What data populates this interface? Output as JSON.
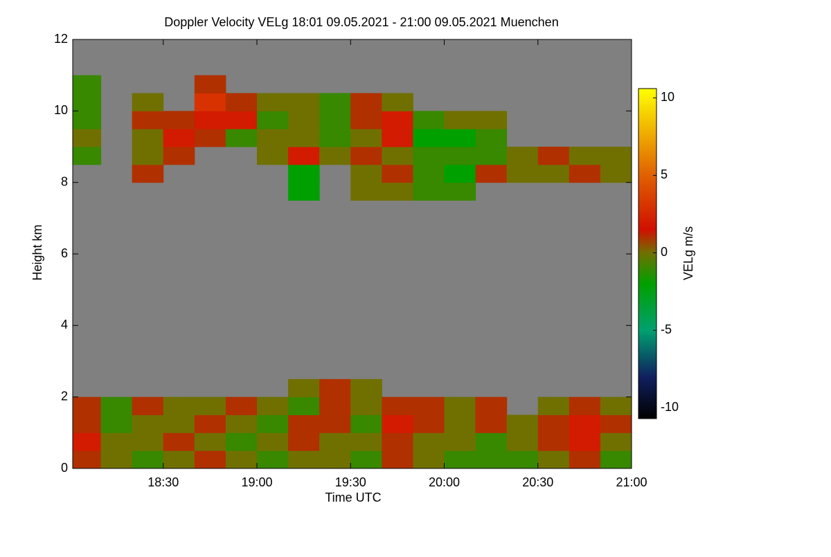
{
  "chart_data": {
    "type": "heatmap",
    "title": "Doppler Velocity VELg   18:01 09.05.2021 - 21:00 09.05.2021 Muenchen",
    "x_label": "Time UTC",
    "y_label": "Height km",
    "colorbar_label": "VELg m/s",
    "xlim": [
      1081,
      1260
    ],
    "ylim": [
      0,
      12
    ],
    "xticks": [
      {
        "value": 1110,
        "label": "18:30"
      },
      {
        "value": 1140,
        "label": "19:00"
      },
      {
        "value": 1170,
        "label": "19:30"
      },
      {
        "value": 1200,
        "label": "20:00"
      },
      {
        "value": 1230,
        "label": "20:30"
      },
      {
        "value": 1260,
        "label": "21:00"
      }
    ],
    "yticks": [
      0,
      2,
      4,
      6,
      8,
      10,
      12
    ],
    "zlim": [
      -10.7,
      10.6
    ],
    "zticks": [
      -10,
      -5,
      0,
      5,
      10
    ],
    "background": "#808080",
    "colorscale": [
      [
        -10.7,
        "#000000"
      ],
      [
        -8,
        "#102060"
      ],
      [
        -5,
        "#00a070"
      ],
      [
        -2,
        "#00a000"
      ],
      [
        0,
        "#707000"
      ],
      [
        1.5,
        "#d01000"
      ],
      [
        5,
        "#e06000"
      ],
      [
        10.6,
        "#ffff00"
      ]
    ],
    "x_bins": [
      1080,
      1090,
      1100,
      1110,
      1120,
      1130,
      1140,
      1150,
      1160,
      1170,
      1180,
      1190,
      1200,
      1210,
      1220,
      1230,
      1240,
      1250,
      1260
    ],
    "y_bins": [
      0,
      0.5,
      1,
      1.5,
      2,
      2.5,
      3,
      3.5,
      4,
      4.5,
      5,
      5.5,
      6,
      6.5,
      7,
      7.5,
      8,
      8.5,
      9,
      9.5,
      10,
      10.5,
      11,
      11.5,
      12
    ],
    "values": [
      [
        1,
        0,
        -1,
        0,
        1,
        0,
        -1,
        0,
        0,
        -1,
        1,
        0,
        -1,
        -1,
        -1,
        0,
        1,
        -1
      ],
      [
        2,
        0,
        0,
        1,
        0,
        -1,
        0,
        1,
        0,
        0,
        1,
        0,
        0,
        -1,
        0,
        1,
        2,
        0
      ],
      [
        1,
        -1,
        0,
        0,
        1,
        0,
        -1,
        1,
        1,
        -1,
        2,
        1,
        0,
        1,
        0,
        1,
        2,
        1
      ],
      [
        1,
        -1,
        1,
        0,
        0,
        1,
        0,
        -1,
        1,
        0,
        1,
        1,
        0,
        1,
        null,
        0,
        1,
        0
      ],
      [
        null,
        null,
        null,
        null,
        null,
        null,
        null,
        0,
        1,
        0,
        null,
        null,
        null,
        null,
        null,
        null,
        null,
        null
      ],
      [
        null,
        null,
        null,
        null,
        null,
        null,
        null,
        null,
        null,
        null,
        null,
        null,
        null,
        null,
        null,
        null,
        null,
        null
      ],
      [
        null,
        null,
        null,
        null,
        null,
        null,
        null,
        null,
        null,
        null,
        null,
        null,
        null,
        null,
        null,
        null,
        null,
        null
      ],
      [
        null,
        null,
        null,
        null,
        null,
        null,
        null,
        null,
        null,
        null,
        null,
        null,
        null,
        null,
        null,
        null,
        null,
        null
      ],
      [
        null,
        null,
        null,
        null,
        null,
        null,
        null,
        null,
        null,
        null,
        null,
        null,
        null,
        null,
        null,
        null,
        null,
        null
      ],
      [
        null,
        null,
        null,
        null,
        null,
        null,
        null,
        null,
        null,
        null,
        null,
        null,
        null,
        null,
        null,
        null,
        null,
        null
      ],
      [
        null,
        null,
        null,
        null,
        null,
        null,
        null,
        null,
        null,
        null,
        null,
        null,
        null,
        null,
        null,
        null,
        null,
        null
      ],
      [
        null,
        null,
        null,
        null,
        null,
        null,
        null,
        null,
        null,
        null,
        null,
        null,
        null,
        null,
        null,
        null,
        null,
        null
      ],
      [
        null,
        null,
        null,
        null,
        null,
        null,
        null,
        null,
        null,
        null,
        null,
        null,
        null,
        null,
        null,
        null,
        null,
        null
      ],
      [
        null,
        null,
        null,
        null,
        null,
        null,
        null,
        null,
        null,
        null,
        null,
        null,
        null,
        null,
        null,
        null,
        null,
        null
      ],
      [
        null,
        null,
        null,
        null,
        null,
        null,
        null,
        null,
        null,
        null,
        null,
        null,
        null,
        null,
        null,
        null,
        null,
        null
      ],
      [
        null,
        null,
        null,
        null,
        null,
        null,
        null,
        -2,
        null,
        0,
        0,
        -1,
        -1,
        null,
        null,
        null,
        null,
        null
      ],
      [
        null,
        null,
        1,
        null,
        null,
        null,
        null,
        -2,
        null,
        0,
        1,
        -1,
        -2,
        1,
        0,
        0,
        1,
        0
      ],
      [
        -1,
        null,
        0,
        1,
        null,
        null,
        0,
        2,
        0,
        1,
        0,
        -1,
        -1,
        -1,
        0,
        1,
        0,
        0
      ],
      [
        0,
        null,
        0,
        2,
        1,
        -1,
        0,
        0,
        -1,
        0,
        2,
        -2,
        -2,
        -1,
        null,
        null,
        null,
        null
      ],
      [
        -1,
        null,
        1,
        1,
        2,
        2,
        -1,
        0,
        -1,
        1,
        2,
        -1,
        0,
        0,
        null,
        null,
        null,
        null
      ],
      [
        -1,
        null,
        0,
        null,
        3,
        1,
        0,
        0,
        -1,
        1,
        0,
        null,
        null,
        null,
        null,
        null,
        null,
        null
      ],
      [
        -1,
        null,
        null,
        null,
        1,
        null,
        null,
        null,
        null,
        null,
        null,
        null,
        null,
        null,
        null,
        null,
        null,
        null
      ],
      [
        null,
        null,
        null,
        null,
        null,
        null,
        null,
        null,
        null,
        null,
        null,
        null,
        null,
        null,
        null,
        null,
        null,
        null
      ],
      [
        null,
        null,
        null,
        null,
        null,
        null,
        null,
        null,
        null,
        null,
        null,
        null,
        null,
        null,
        null,
        null,
        null,
        null
      ]
    ]
  }
}
